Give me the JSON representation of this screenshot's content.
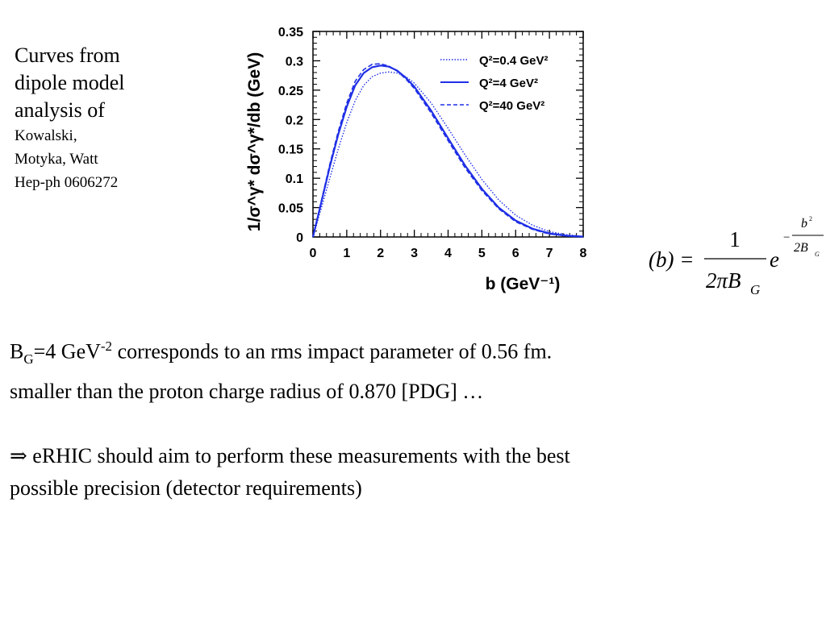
{
  "caption": {
    "line1": "Curves from",
    "line2": "dipole model",
    "line3": "analysis of",
    "line4": "Kowalski,",
    "line5": "Motyka, Watt",
    "line6": "Hep-ph 0606272"
  },
  "formula": {
    "lhs": "(b) =",
    "numerator": "1",
    "denominator": "2πB",
    "denominator_sub": "G",
    "base": "e",
    "exp_sign": "−",
    "exp_numerator": "b",
    "exp_numerator_sup": "2",
    "exp_denominator": "2B",
    "exp_denominator_sub": "G"
  },
  "body": {
    "p1_b": "B",
    "p1_sub": "G",
    "p1_eq": "=4 GeV",
    "p1_sup": "-2",
    "p1_rest": " corresponds to an rms impact parameter of 0.56 fm.",
    "p2": "smaller than the proton charge radius of 0.870 [PDG] …",
    "p3_arrow": "⇒",
    "p3": " eRHIC should aim to perform these measurements with the best",
    "p4": "possible precision (detector requirements)"
  },
  "chart_data": {
    "type": "line",
    "xlabel": "b (GeV⁻¹)",
    "ylabel": "1/σ^γ* dσ^γ*/db (GeV)",
    "xlim": [
      0,
      8
    ],
    "ylim": [
      0,
      0.35
    ],
    "xticks": [
      "0",
      "1",
      "2",
      "3",
      "4",
      "5",
      "6",
      "7",
      "8"
    ],
    "yticks": [
      "0",
      "0.05",
      "0.1",
      "0.15",
      "0.2",
      "0.25",
      "0.3",
      "0.35"
    ],
    "legend_position": "top-right",
    "series": [
      {
        "name": "Q²=0.4 GeV²",
        "style": "dotted",
        "x": [
          0,
          0.25,
          0.5,
          0.75,
          1.0,
          1.25,
          1.5,
          1.75,
          2.0,
          2.25,
          2.5,
          2.75,
          3.0,
          3.5,
          4.0,
          4.5,
          5.0,
          5.5,
          6.0,
          6.5,
          7.0,
          7.5,
          8.0
        ],
        "y": [
          0,
          0.05,
          0.1,
          0.15,
          0.195,
          0.232,
          0.258,
          0.273,
          0.279,
          0.281,
          0.279,
          0.273,
          0.262,
          0.228,
          0.185,
          0.14,
          0.098,
          0.063,
          0.037,
          0.02,
          0.009,
          0.004,
          0.001
        ]
      },
      {
        "name": "Q²=4 GeV²",
        "style": "solid",
        "x": [
          0,
          0.25,
          0.5,
          0.75,
          1.0,
          1.25,
          1.5,
          1.75,
          2.0,
          2.25,
          2.5,
          2.75,
          3.0,
          3.5,
          4.0,
          4.5,
          5.0,
          5.5,
          6.0,
          6.5,
          7.0,
          7.5,
          8.0
        ],
        "y": [
          0,
          0.06,
          0.12,
          0.175,
          0.222,
          0.258,
          0.279,
          0.289,
          0.292,
          0.29,
          0.283,
          0.271,
          0.256,
          0.215,
          0.168,
          0.122,
          0.082,
          0.05,
          0.028,
          0.014,
          0.006,
          0.002,
          0.0005
        ]
      },
      {
        "name": "Q²=40 GeV²",
        "style": "dashed",
        "x": [
          0,
          0.25,
          0.5,
          0.75,
          1.0,
          1.25,
          1.5,
          1.75,
          2.0,
          2.25,
          2.5,
          2.75,
          3.0,
          3.5,
          4.0,
          4.5,
          5.0,
          5.5,
          6.0,
          6.5,
          7.0,
          7.5,
          8.0
        ],
        "y": [
          0,
          0.062,
          0.124,
          0.18,
          0.228,
          0.265,
          0.285,
          0.294,
          0.295,
          0.291,
          0.282,
          0.269,
          0.253,
          0.211,
          0.164,
          0.118,
          0.079,
          0.048,
          0.026,
          0.013,
          0.005,
          0.002,
          0.0004
        ]
      }
    ]
  }
}
